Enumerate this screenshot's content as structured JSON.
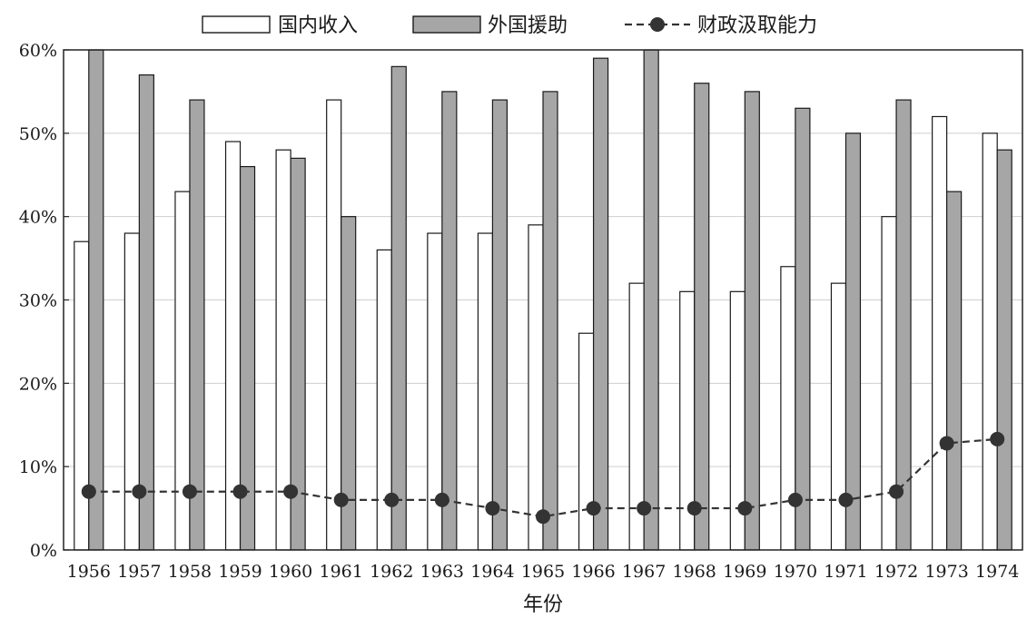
{
  "chart_data": {
    "type": "bar",
    "title": "",
    "xlabel": "年份",
    "ylabel": "",
    "ylim": [
      0,
      60
    ],
    "y_tick_labels": [
      "0%",
      "10%",
      "20%",
      "30%",
      "40%",
      "50%",
      "60%"
    ],
    "grid": "horizontal",
    "legend_position": "top",
    "categories": [
      "1956",
      "1957",
      "1958",
      "1959",
      "1960",
      "1961",
      "1962",
      "1963",
      "1964",
      "1965",
      "1966",
      "1967",
      "1968",
      "1969",
      "1970",
      "1971",
      "1972",
      "1973",
      "1974"
    ],
    "series": [
      {
        "name": "国内收入",
        "type": "bar",
        "color": "#ffffff",
        "values": [
          37,
          38,
          43,
          49,
          48,
          54,
          36,
          38,
          38,
          39,
          26,
          32,
          31,
          31,
          34,
          32,
          40,
          52,
          50
        ]
      },
      {
        "name": "外国援助",
        "type": "bar",
        "color": "#a6a6a6",
        "values": [
          60,
          57,
          54,
          46,
          47,
          40,
          58,
          55,
          54,
          55,
          59,
          60,
          56,
          55,
          53,
          50,
          54,
          43,
          48
        ]
      },
      {
        "name": "财政汲取能力",
        "type": "line",
        "style": "dashed",
        "marker": "circle",
        "color": "#333333",
        "values": [
          7,
          7,
          7,
          7,
          7,
          6,
          6,
          6,
          5,
          4,
          5,
          5,
          5,
          5,
          6,
          6,
          7,
          12.8,
          13.3
        ]
      }
    ]
  }
}
